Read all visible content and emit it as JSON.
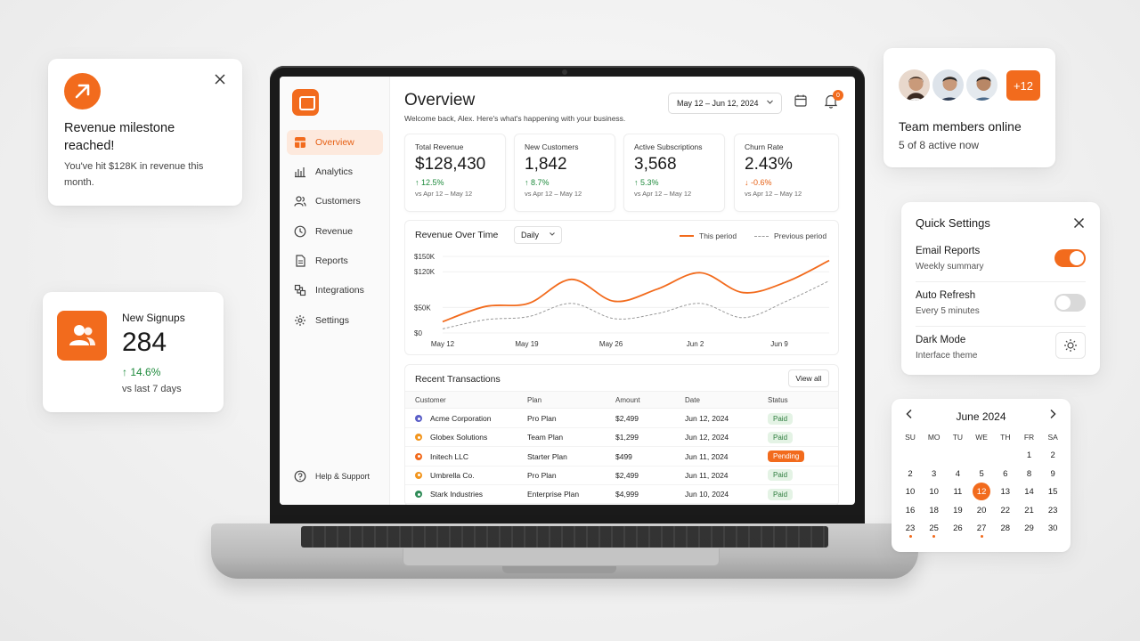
{
  "milestone": {
    "title": "Revenue milestone reached!",
    "description": "You've hit $128K in revenue this month."
  },
  "signups": {
    "title": "New Signups",
    "value": "284",
    "change": "↑ 14.6%",
    "compare": "vs last 7 days"
  },
  "team": {
    "extra": "+12",
    "title": "Team members online",
    "subtitle": "5 of 8 active now"
  },
  "quick_settings": {
    "title": "Quick Settings",
    "items": [
      {
        "label": "Email Reports",
        "sub": "Weekly summary",
        "state": "on"
      },
      {
        "label": "Auto Refresh",
        "sub": "Every 5 minutes",
        "state": "off"
      },
      {
        "label": "Dark Mode",
        "sub": "Interface theme",
        "state": "sun-icon"
      }
    ]
  },
  "calendar": {
    "month": "June 2024",
    "weekdays": [
      "SU",
      "MO",
      "TU",
      "WE",
      "TH",
      "FR",
      "SA"
    ],
    "selected": "12",
    "rows": [
      [
        "",
        "",
        "",
        "",
        "",
        "1",
        "2"
      ],
      [
        "2",
        "3",
        "4",
        "5",
        "6",
        "8",
        "9"
      ],
      [
        "10",
        "10",
        "11",
        "12",
        "13",
        "14",
        "15"
      ],
      [
        "16",
        "18",
        "19",
        "20",
        "22",
        "21",
        "23"
      ],
      [
        "23",
        "25",
        "26",
        "27",
        "28",
        "29",
        "30"
      ]
    ]
  },
  "sidebar": {
    "items": [
      {
        "label": "Overview",
        "icon": "home-icon",
        "active": true
      },
      {
        "label": "Analytics",
        "icon": "analytics-icon"
      },
      {
        "label": "Customers",
        "icon": "users-icon"
      },
      {
        "label": "Revenue",
        "icon": "clock-icon"
      },
      {
        "label": "Reports",
        "icon": "document-icon"
      },
      {
        "label": "Integrations",
        "icon": "puzzle-icon"
      },
      {
        "label": "Settings",
        "icon": "gear-icon"
      }
    ],
    "help": "Help & Support"
  },
  "header": {
    "title": "Overview",
    "subtitle": "Welcome back, Alex. Here's what's happening with your business.",
    "date_range": "May 12 – Jun 12, 2024",
    "notifications": "0"
  },
  "kpis": [
    {
      "label": "Total Revenue",
      "value": "$128,430",
      "change": "↑ 12.5%",
      "dir": "up",
      "compare": "vs Apr 12 – May 12"
    },
    {
      "label": "New Customers",
      "value": "1,842",
      "change": "↑ 8.7%",
      "dir": "up",
      "compare": "vs Apr 12 – May 12"
    },
    {
      "label": "Active Subscriptions",
      "value": "3,568",
      "change": "↑ 5.3%",
      "dir": "up",
      "compare": "vs Apr 12 – May 12"
    },
    {
      "label": "Churn Rate",
      "value": "2.43%",
      "change": "↓ -0.6%",
      "dir": "down",
      "compare": "vs Apr 12 – May 12"
    }
  ],
  "chart_data": {
    "type": "line",
    "title": "Revenue Over Time",
    "granularity": "Daily",
    "x": [
      "May 12",
      "May 15",
      "May 19",
      "May 22",
      "May 26",
      "May 29",
      "Jun 2",
      "Jun 5",
      "Jun 9",
      "Jun 12"
    ],
    "xticks": [
      "May 12",
      "May 19",
      "May 26",
      "Jun 2",
      "Jun 9"
    ],
    "yticks": [
      "$0",
      "$50K",
      "$120K",
      "$150K"
    ],
    "ylim": [
      0,
      150
    ],
    "series": [
      {
        "name": "This period",
        "color": "#f26b1d",
        "style": "solid",
        "values": [
          22,
          52,
          58,
          105,
          62,
          86,
          118,
          79,
          100,
          142
        ]
      },
      {
        "name": "Previous period",
        "color": "#999999",
        "style": "dashed",
        "values": [
          8,
          26,
          32,
          58,
          28,
          38,
          58,
          30,
          62,
          102
        ]
      }
    ]
  },
  "transactions": {
    "title": "Recent Transactions",
    "view_all": "View all",
    "columns": [
      "Customer",
      "Plan",
      "Amount",
      "Date",
      "Status"
    ],
    "rows": [
      {
        "customer": "Acme Corporation",
        "plan": "Pro Plan",
        "amount": "$2,499",
        "date": "Jun 12, 2024",
        "status": "Paid",
        "dot": "#5b5fc7"
      },
      {
        "customer": "Globex Solutions",
        "plan": "Team Plan",
        "amount": "$1,299",
        "date": "Jun 12, 2024",
        "status": "Paid",
        "dot": "#f2951d"
      },
      {
        "customer": "Initech LLC",
        "plan": "Starter Plan",
        "amount": "$499",
        "date": "Jun 11, 2024",
        "status": "Pending",
        "dot": "#f26b1d"
      },
      {
        "customer": "Umbrella Co.",
        "plan": "Pro Plan",
        "amount": "$2,499",
        "date": "Jun 11, 2024",
        "status": "Paid",
        "dot": "#f2951d"
      },
      {
        "customer": "Stark Industries",
        "plan": "Enterprise Plan",
        "amount": "$4,999",
        "date": "Jun 10, 2024",
        "status": "Paid",
        "dot": "#2e8b57"
      }
    ]
  },
  "colors": {
    "accent": "#f26b1d",
    "success": "#1e8a3c"
  }
}
